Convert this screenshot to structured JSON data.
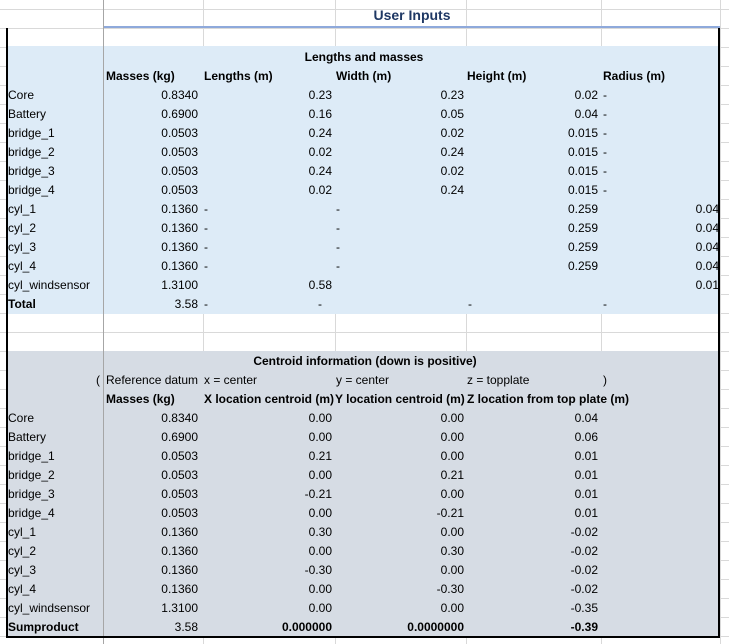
{
  "title": "User Inputs",
  "section1": {
    "heading": "Lengths and masses",
    "headers": {
      "masses": "Masses (kg)",
      "lengths": "Lengths (m)",
      "width": "Width (m)",
      "height": "Height (m)",
      "radius": "Radius (m)"
    },
    "rows": [
      {
        "name": "Core",
        "mass": "0.8340",
        "length": "",
        "width": "0.23",
        "height": "0.23",
        "radius": "0.02",
        "rdash": "-",
        "extra": ""
      },
      {
        "name": "Battery",
        "mass": "0.6900",
        "length": "",
        "width": "0.16",
        "height": "0.05",
        "radius": "0.04",
        "rdash": "-",
        "extra": ""
      },
      {
        "name": "bridge_1",
        "mass": "0.0503",
        "length": "",
        "width": "0.24",
        "height": "0.02",
        "radius": "0.015",
        "rdash": "-",
        "extra": ""
      },
      {
        "name": "bridge_2",
        "mass": "0.0503",
        "length": "",
        "width": "0.02",
        "height": "0.24",
        "radius": "0.015",
        "rdash": "-",
        "extra": ""
      },
      {
        "name": "bridge_3",
        "mass": "0.0503",
        "length": "",
        "width": "0.24",
        "height": "0.02",
        "radius": "0.015",
        "rdash": "-",
        "extra": ""
      },
      {
        "name": "bridge_4",
        "mass": "0.0503",
        "length": "",
        "width": "0.02",
        "height": "0.24",
        "radius": "0.015",
        "rdash": "-",
        "extra": ""
      },
      {
        "name": "cyl_1",
        "mass": "0.1360",
        "length": "-",
        "width": "-",
        "height": "",
        "radius": "0.259",
        "rdash": "",
        "extra": "0.04"
      },
      {
        "name": "cyl_2",
        "mass": "0.1360",
        "length": "-",
        "width": "-",
        "height": "",
        "radius": "0.259",
        "rdash": "",
        "extra": "0.04"
      },
      {
        "name": "cyl_3",
        "mass": "0.1360",
        "length": "-",
        "width": "-",
        "height": "",
        "radius": "0.259",
        "rdash": "",
        "extra": "0.04"
      },
      {
        "name": "cyl_4",
        "mass": "0.1360",
        "length": "-",
        "width": "-",
        "height": "",
        "radius": "0.259",
        "rdash": "",
        "extra": "0.04"
      },
      {
        "name": "cyl_windsensor",
        "mass": "1.3100",
        "length": "",
        "width": "0.58",
        "height": "",
        "radius": "",
        "rdash": "",
        "extra": "0.01"
      }
    ],
    "total": {
      "name": "Total",
      "mass": "3.58",
      "length": "-",
      "width": "-",
      "height": "-",
      "radius": "-"
    }
  },
  "section2": {
    "heading": "Centroid information (down is positive)",
    "ref": {
      "open": "(",
      "label": "Reference datum",
      "x": "x = center",
      "y": "y = center",
      "z": "z = topplate",
      "close": ")"
    },
    "headers": {
      "masses": "Masses (kg)",
      "x": "X location centroid (m)",
      "y": "Y location centroid (m)",
      "z": "Z location from top plate (m)"
    },
    "rows": [
      {
        "name": "Core",
        "mass": "0.8340",
        "x": "0.00",
        "y": "0.00",
        "z": "0.04"
      },
      {
        "name": "Battery",
        "mass": "0.6900",
        "x": "0.00",
        "y": "0.00",
        "z": "0.06"
      },
      {
        "name": "bridge_1",
        "mass": "0.0503",
        "x": "0.21",
        "y": "0.00",
        "z": "0.01"
      },
      {
        "name": "bridge_2",
        "mass": "0.0503",
        "x": "0.00",
        "y": "0.21",
        "z": "0.01"
      },
      {
        "name": "bridge_3",
        "mass": "0.0503",
        "x": "-0.21",
        "y": "0.00",
        "z": "0.01"
      },
      {
        "name": "bridge_4",
        "mass": "0.0503",
        "x": "0.00",
        "y": "-0.21",
        "z": "0.01"
      },
      {
        "name": "cyl_1",
        "mass": "0.1360",
        "x": "0.30",
        "y": "0.00",
        "z": "-0.02"
      },
      {
        "name": "cyl_2",
        "mass": "0.1360",
        "x": "0.00",
        "y": "0.30",
        "z": "-0.02"
      },
      {
        "name": "cyl_3",
        "mass": "0.1360",
        "x": "-0.30",
        "y": "0.00",
        "z": "-0.02"
      },
      {
        "name": "cyl_4",
        "mass": "0.1360",
        "x": "0.00",
        "y": "-0.30",
        "z": "-0.02"
      },
      {
        "name": "cyl_windsensor",
        "mass": "1.3100",
        "x": "0.00",
        "y": "0.00",
        "z": "-0.35"
      }
    ],
    "sum": {
      "name": "Sumproduct",
      "mass": "3.58",
      "x": "0.000000",
      "y": "0.0000000",
      "z": "-0.39"
    }
  }
}
